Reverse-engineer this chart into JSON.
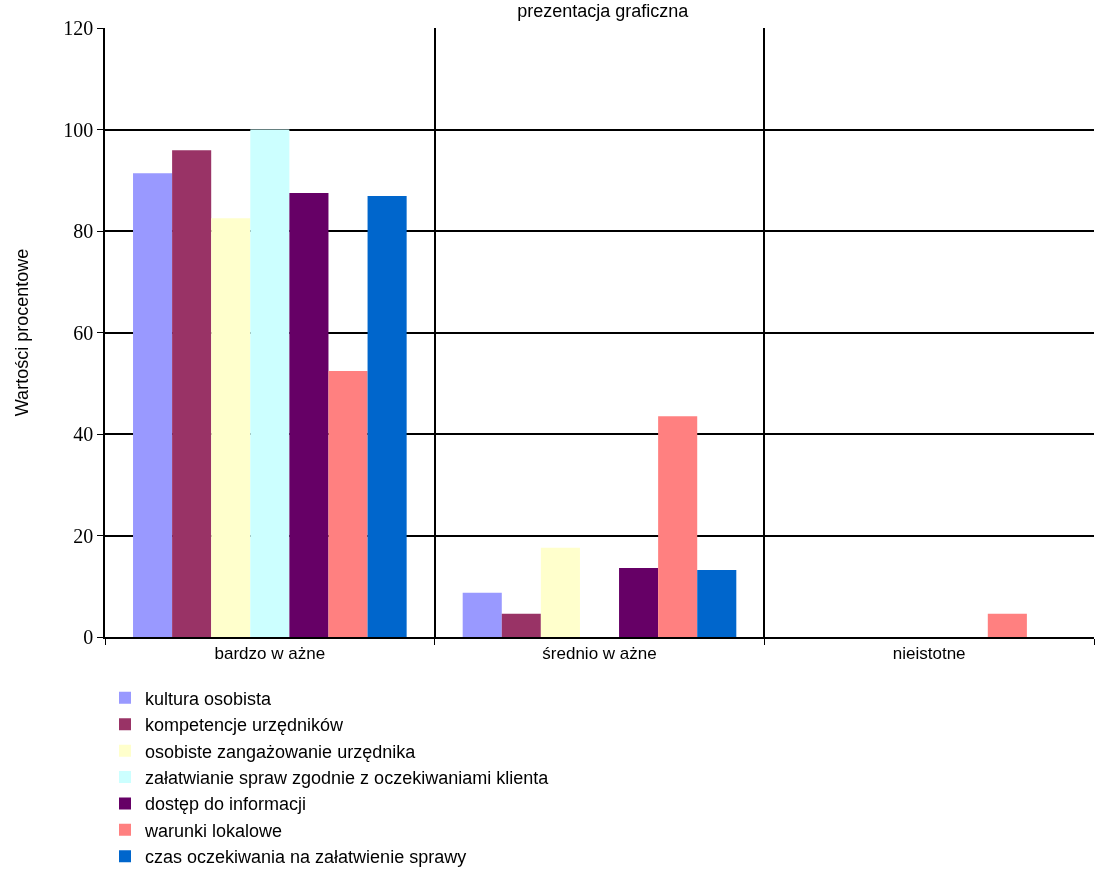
{
  "chart_data": {
    "type": "bar",
    "title": "prezentacja graficzna",
    "ylabel": "Wartości procentowe",
    "categories": [
      "bardzo w ażne",
      "średnio w ażne",
      "nieistotne"
    ],
    "series": [
      {
        "name": "kultura osobista",
        "color": "#9999ff",
        "values": [
          91.4,
          8.7,
          0
        ]
      },
      {
        "name": "kompetencje urzędników",
        "color": "#993366",
        "values": [
          95.9,
          4.6,
          0
        ]
      },
      {
        "name": "osobiste zangażowanie urzędnika",
        "color": "#ffffcc",
        "values": [
          82.5,
          17.6,
          0
        ]
      },
      {
        "name": "załatwianie spraw zgodnie z oczekiwaniami klienta",
        "color": "#ccffff",
        "values": [
          100,
          0,
          0
        ]
      },
      {
        "name": "dostęp do informacji",
        "color": "#660066",
        "values": [
          87.5,
          13.6,
          0
        ]
      },
      {
        "name": "warunki lokalowe",
        "color": "#ff8080",
        "values": [
          52.4,
          43.5,
          4.6
        ]
      },
      {
        "name": "czas oczekiwania na załatwienie sprawy",
        "color": "#0066cc",
        "values": [
          86.9,
          13.2,
          0
        ]
      }
    ],
    "ylim": [
      0,
      120
    ],
    "yticks": [
      0,
      20,
      40,
      60,
      80,
      100,
      120
    ],
    "grid": true,
    "legend": "bottom left"
  }
}
